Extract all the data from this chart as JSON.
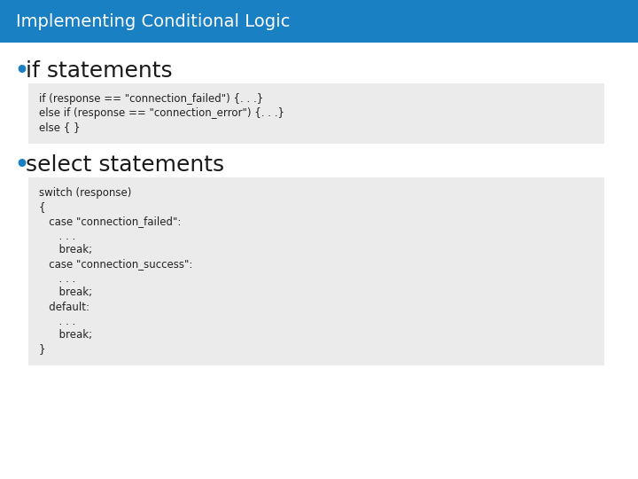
{
  "title": "Implementing Conditional Logic",
  "title_bg_color": "#1a80c4",
  "title_text_color": "#ffffff",
  "title_fontsize": 14,
  "bg_color": "#ffffff",
  "bullet_color": "#1a80c4",
  "bullet1_text": "if statements",
  "bullet1_fontsize": 18,
  "bullet2_text": "select statements",
  "bullet2_fontsize": 18,
  "code_bg_color": "#ebebeb",
  "code_text_color": "#222222",
  "code_fontsize": 8.5,
  "code1_lines": [
    "if (response == \"connection_failed\") {. . .}",
    "else if (response == \"connection_error\") {. . .}",
    "else { }"
  ],
  "code2_lines": [
    "switch (response)",
    "{",
    "   case \"connection_failed\":",
    "      . . .",
    "      break;",
    "   case \"connection_success\":",
    "      . . .",
    "      break;",
    "   default:",
    "      . . .",
    "      break;",
    "}"
  ]
}
